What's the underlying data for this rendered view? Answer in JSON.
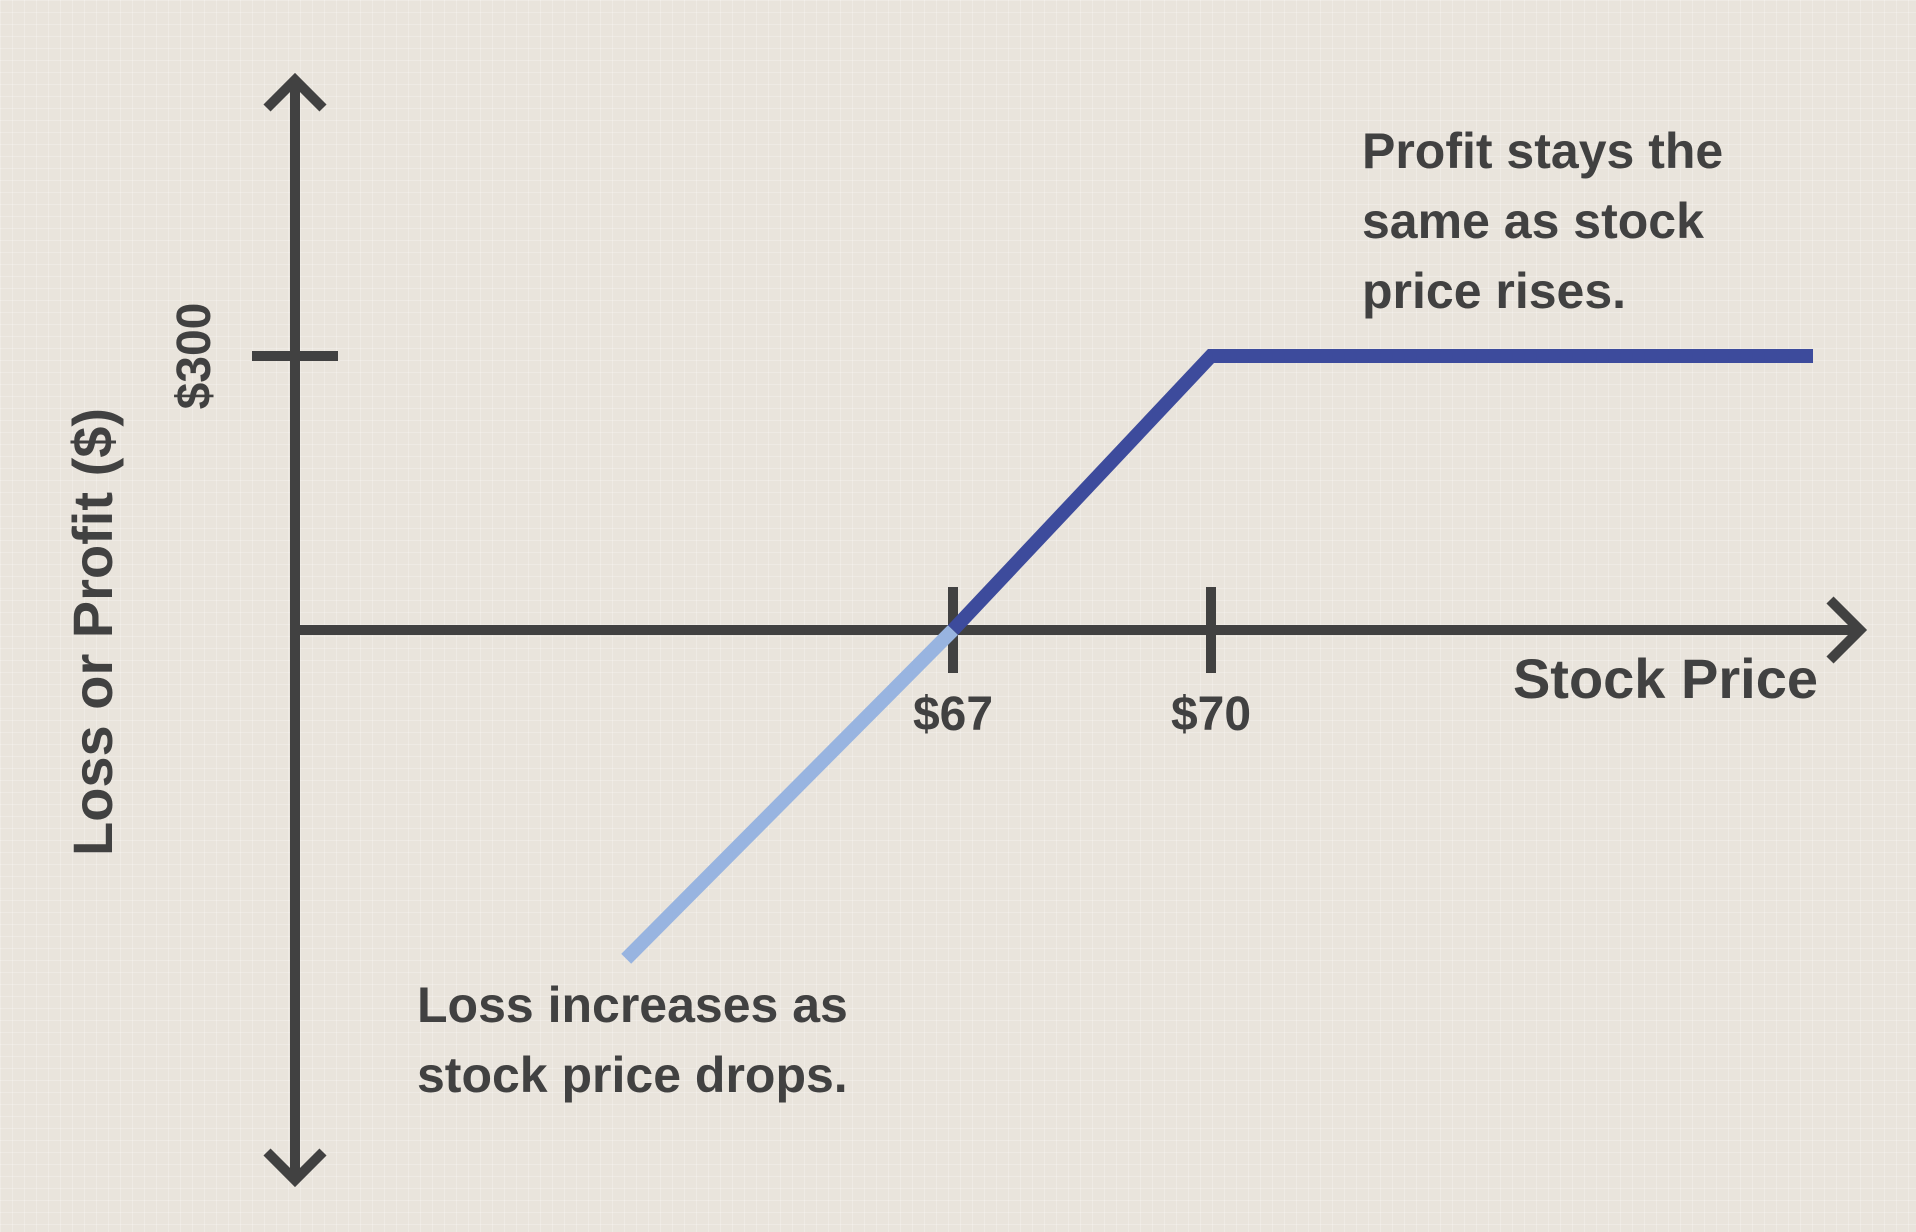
{
  "chart_data": {
    "type": "line",
    "title": "",
    "xlabel": "Stock Price",
    "ylabel": "Loss or Profit ($)",
    "x_ticks": [
      {
        "value": 67,
        "label": "$67"
      },
      {
        "value": 70,
        "label": "$70"
      }
    ],
    "y_ticks": [
      {
        "value": 300,
        "label": "$300"
      }
    ],
    "xlim": [
      59.5,
      77.5
    ],
    "ylim": [
      -430,
      550
    ],
    "grid": false,
    "legend": "none",
    "series": [
      {
        "color": "#98b4e0",
        "x": [
          63.2,
          67
        ],
        "y": [
          -360,
          0
        ]
      },
      {
        "color": "#3d4b9c",
        "x": [
          67,
          70,
          77
        ],
        "y": [
          0,
          300,
          300
        ]
      }
    ],
    "annotations": [
      {
        "lines": [
          "Profit stays the",
          "same as stock",
          "price rises."
        ]
      },
      {
        "lines": [
          "Loss increases as",
          "stock price drops."
        ]
      }
    ]
  }
}
